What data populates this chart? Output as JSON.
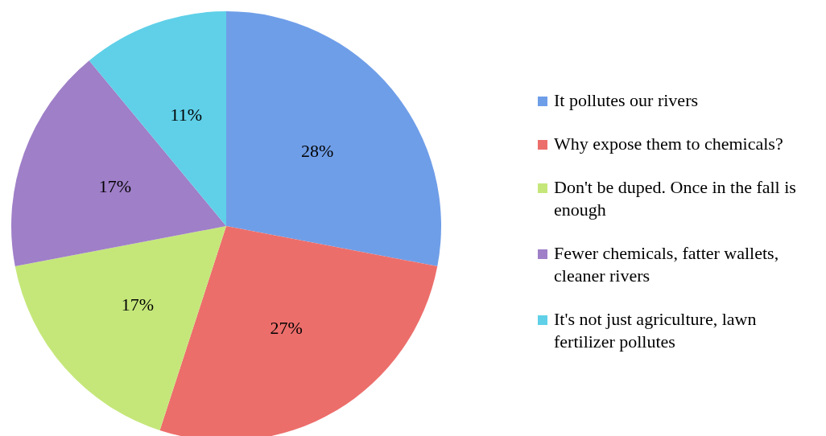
{
  "chart_data": {
    "type": "pie",
    "categories": [
      "It pollutes our rivers",
      "Why expose them to chemicals?",
      "Don't be duped. Once in the fall is enough",
      "Fewer chemicals, fatter wallets, cleaner rivers",
      "It's not just agriculture, lawn fertilizer pollutes"
    ],
    "values": [
      28,
      27,
      17,
      17,
      11
    ],
    "colors": [
      "#6f9ee8",
      "#ec6e6b",
      "#c5e77a",
      "#9f7fc8",
      "#5fd0e8"
    ],
    "value_labels": [
      "28%",
      "27%",
      "17%",
      "17%",
      "11%"
    ],
    "legend": "right"
  }
}
